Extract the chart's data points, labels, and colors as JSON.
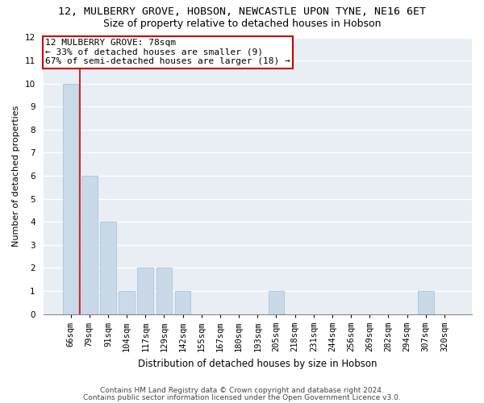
{
  "title1": "12, MULBERRY GROVE, HOBSON, NEWCASTLE UPON TYNE, NE16 6ET",
  "title2": "Size of property relative to detached houses in Hobson",
  "xlabel": "Distribution of detached houses by size in Hobson",
  "ylabel": "Number of detached properties",
  "categories": [
    "66sqm",
    "79sqm",
    "91sqm",
    "104sqm",
    "117sqm",
    "129sqm",
    "142sqm",
    "155sqm",
    "167sqm",
    "180sqm",
    "193sqm",
    "205sqm",
    "218sqm",
    "231sqm",
    "244sqm",
    "256sqm",
    "269sqm",
    "282sqm",
    "294sqm",
    "307sqm",
    "320sqm"
  ],
  "values": [
    10,
    6,
    4,
    1,
    2,
    2,
    1,
    0,
    0,
    0,
    0,
    1,
    0,
    0,
    0,
    0,
    0,
    0,
    0,
    1,
    0
  ],
  "bar_color": "#c9d9e8",
  "bar_edgecolor": "#a8c4d8",
  "vline_x_index": 1,
  "vline_color": "#cc0000",
  "annotation_line1": "12 MULBERRY GROVE: 78sqm",
  "annotation_line2": "← 33% of detached houses are smaller (9)",
  "annotation_line3": "67% of semi-detached houses are larger (18) →",
  "annotation_box_color": "#cc0000",
  "ylim": [
    0,
    12
  ],
  "yticks": [
    0,
    1,
    2,
    3,
    4,
    5,
    6,
    7,
    8,
    9,
    10,
    11,
    12
  ],
  "background_color": "#e8eef4",
  "grid_color": "#d0d8e0",
  "footer1": "Contains HM Land Registry data © Crown copyright and database right 2024.",
  "footer2": "Contains public sector information licensed under the Open Government Licence v3.0.",
  "title1_fontsize": 9.5,
  "title2_fontsize": 9,
  "xlabel_fontsize": 8.5,
  "ylabel_fontsize": 8,
  "tick_fontsize": 7.5,
  "annotation_fontsize": 8,
  "footer_fontsize": 6.5
}
